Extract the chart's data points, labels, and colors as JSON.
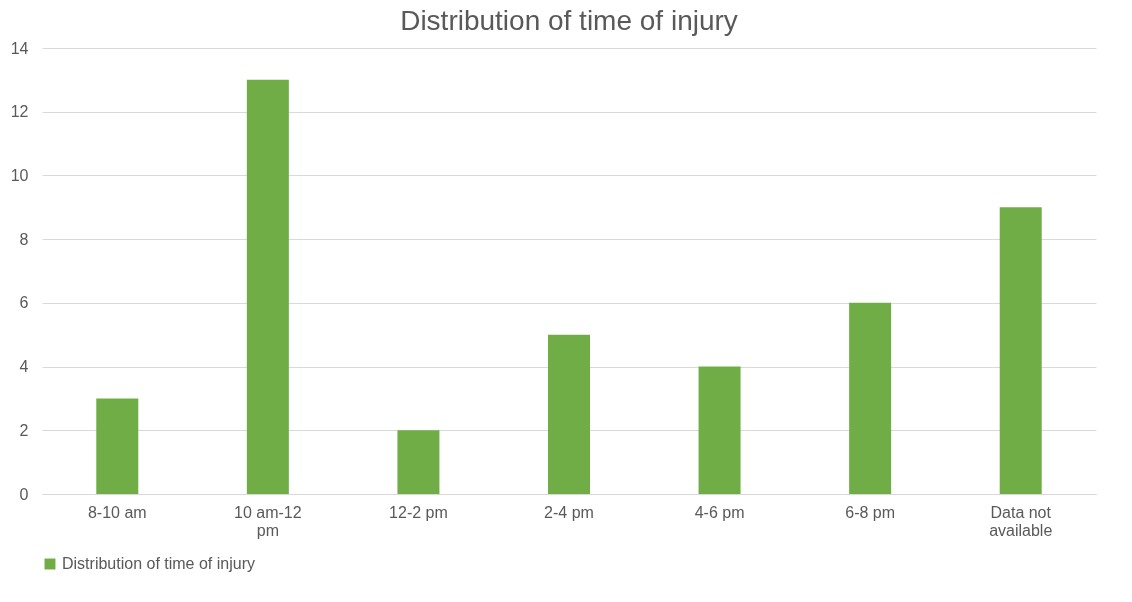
{
  "chart_data": {
    "type": "bar",
    "title": "Distribution of time of injury",
    "categories": [
      "8-10 am",
      "10 am-12 pm",
      "12-2 pm",
      "2-4 pm",
      "4-6 pm",
      "6-8 pm",
      "Data not available"
    ],
    "series": [
      {
        "name": "Distribution of time of injury",
        "color": "#70ad47",
        "values": [
          3,
          13,
          2,
          5,
          4,
          6,
          9
        ]
      }
    ],
    "ylim": [
      0,
      14
    ],
    "yticks": [
      0,
      2,
      4,
      6,
      8,
      10,
      12,
      14
    ],
    "grid": "y",
    "legend": "bottom"
  }
}
